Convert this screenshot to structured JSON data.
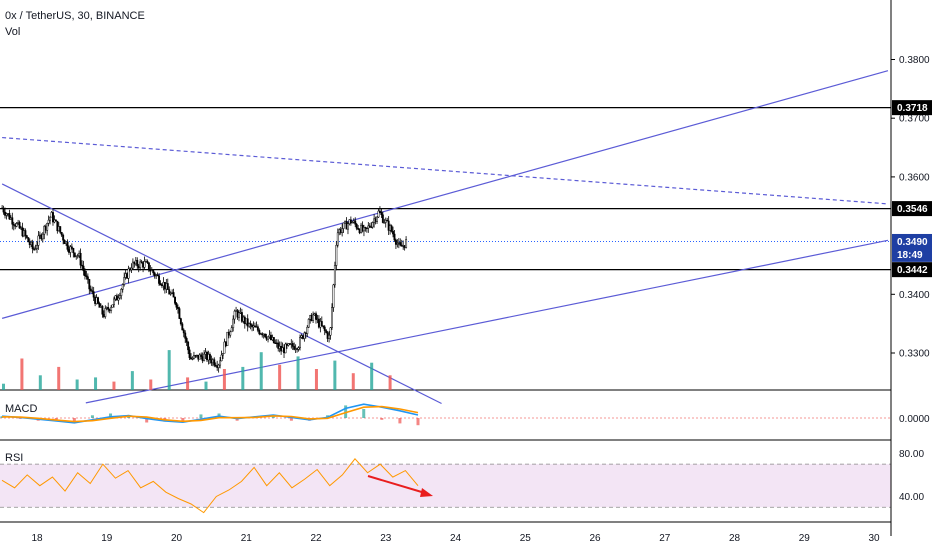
{
  "header": {
    "symbol": "0x / TetherUS, 30, BINANCE",
    "vol_label": "Vol"
  },
  "pane_labels": {
    "macd": "MACD",
    "rsi": "RSI"
  },
  "colors": {
    "up": "#26a69a",
    "down": "#ef5350",
    "candle": "#000000",
    "trendline": "#5b5bd6",
    "macd_line": "#2196f3",
    "signal_line": "#ff9800",
    "rsi_line": "#ff9800",
    "rsi_band": "#f3e5f5",
    "arrow": "#e91e1e"
  },
  "chart_data": [
    {
      "type": "candlestick",
      "title": "0x / TetherUS, 30, BINANCE",
      "x_ticks": [
        "18",
        "19",
        "20",
        "21",
        "22",
        "23",
        "24",
        "25",
        "26",
        "27",
        "28",
        "29",
        "30"
      ],
      "y_ticks": [
        "0.3800",
        "0.3700",
        "0.3600",
        "0.3400",
        "0.3300"
      ],
      "ylim": [
        0.3214,
        0.3895
      ],
      "price_labels": [
        {
          "text": "0.3718",
          "value": 0.3718,
          "style": "black"
        },
        {
          "text": "0.3546",
          "value": 0.3546,
          "style": "black"
        },
        {
          "text": "0.3490",
          "value": 0.349,
          "style": "blue"
        },
        {
          "text": "18:49",
          "value": 0.3468,
          "style": "blue"
        },
        {
          "text": "0.3442",
          "value": 0.3442,
          "style": "black"
        }
      ],
      "horizontal_levels": [
        0.3718,
        0.3546,
        0.3442
      ],
      "current_price": 0.349,
      "trendlines": [
        {
          "style": "solid",
          "from": {
            "day": 17.5,
            "price": 0.3359
          },
          "to": {
            "day": 30.2,
            "price": 0.3781
          }
        },
        {
          "style": "solid",
          "from": {
            "day": 18.7,
            "price": 0.3215
          },
          "to": {
            "day": 30.2,
            "price": 0.3492
          }
        },
        {
          "style": "dashed",
          "from": {
            "day": 17.5,
            "price": 0.3667
          },
          "to": {
            "day": 30.2,
            "price": 0.3554
          }
        },
        {
          "style": "solid",
          "from": {
            "day": 17.5,
            "price": 0.3588
          },
          "to": {
            "day": 23.8,
            "price": 0.3214
          }
        }
      ],
      "close_path": [
        {
          "day": 17.5,
          "price": 0.3547
        },
        {
          "day": 17.8,
          "price": 0.3505
        },
        {
          "day": 17.95,
          "price": 0.3475
        },
        {
          "day": 18.2,
          "price": 0.3535
        },
        {
          "day": 18.45,
          "price": 0.348
        },
        {
          "day": 18.6,
          "price": 0.3465
        },
        {
          "day": 18.75,
          "price": 0.341
        },
        {
          "day": 18.95,
          "price": 0.3365
        },
        {
          "day": 19.15,
          "price": 0.3395
        },
        {
          "day": 19.35,
          "price": 0.345
        },
        {
          "day": 19.55,
          "price": 0.3452
        },
        {
          "day": 19.8,
          "price": 0.342
        },
        {
          "day": 20.0,
          "price": 0.3385
        },
        {
          "day": 20.2,
          "price": 0.329
        },
        {
          "day": 20.4,
          "price": 0.3295
        },
        {
          "day": 20.6,
          "price": 0.3282
        },
        {
          "day": 20.85,
          "price": 0.337
        },
        {
          "day": 21.05,
          "price": 0.3345
        },
        {
          "day": 21.25,
          "price": 0.3335
        },
        {
          "day": 21.5,
          "price": 0.3305
        },
        {
          "day": 21.75,
          "price": 0.3315
        },
        {
          "day": 21.95,
          "price": 0.3365
        },
        {
          "day": 22.2,
          "price": 0.3325
        },
        {
          "day": 22.3,
          "price": 0.3505
        },
        {
          "day": 22.5,
          "price": 0.3525
        },
        {
          "day": 22.7,
          "price": 0.3505
        },
        {
          "day": 22.9,
          "price": 0.354
        },
        {
          "day": 23.1,
          "price": 0.3505
        },
        {
          "day": 23.2,
          "price": 0.3478
        },
        {
          "day": 23.3,
          "price": 0.349
        }
      ],
      "volume_relative": [
        0.15,
        0.75,
        0.35,
        0.55,
        0.25,
        0.3,
        0.2,
        0.45,
        0.25,
        0.95,
        0.3,
        0.2,
        0.5,
        0.55,
        0.9,
        0.6,
        0.8,
        0.5,
        0.7,
        0.4,
        0.65,
        0.35
      ],
      "volume_up": [
        true,
        false,
        true,
        false,
        true,
        true,
        false,
        true,
        false,
        true,
        false,
        true,
        false,
        true,
        true,
        false,
        true,
        false,
        true,
        false,
        true,
        false
      ]
    },
    {
      "type": "line",
      "title": "MACD",
      "y_ticks": [
        "0.0000"
      ],
      "series": [
        {
          "values": [
            0.3,
            0.1,
            -0.2,
            -0.5,
            -0.8,
            -0.3,
            0.2,
            0.4,
            -0.1,
            -0.5,
            -0.7,
            -0.2,
            0.3,
            -0.1,
            0.2,
            0.5,
            0.1,
            -0.3,
            0.1,
            1.6,
            2.3,
            1.8,
            1.2,
            0.5
          ]
        },
        {
          "values": [
            0.2,
            0.15,
            -0.05,
            -0.35,
            -0.6,
            -0.45,
            -0.05,
            0.3,
            0.15,
            -0.3,
            -0.55,
            -0.4,
            0.05,
            0.05,
            0.1,
            0.35,
            0.25,
            -0.15,
            -0.05,
            0.9,
            1.8,
            1.9,
            1.5,
            0.9
          ]
        }
      ]
    },
    {
      "type": "line",
      "title": "RSI",
      "y_ticks": [
        "80.00",
        "40.00"
      ],
      "bands": [
        70,
        30
      ],
      "ylim": [
        20,
        85
      ],
      "values": [
        55,
        48,
        60,
        50,
        58,
        45,
        62,
        52,
        70,
        57,
        64,
        48,
        54,
        44,
        38,
        33,
        25,
        40,
        46,
        54,
        67,
        50,
        62,
        48,
        56,
        65,
        50,
        60,
        75,
        62,
        70,
        58,
        64,
        50
      ]
    }
  ]
}
